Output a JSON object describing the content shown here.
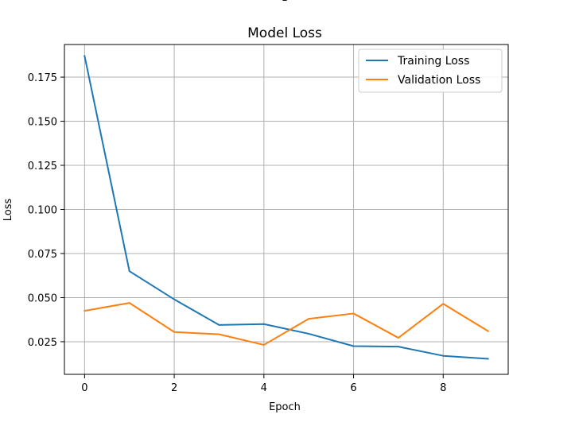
{
  "chart_data": {
    "type": "line",
    "title": "Model Loss",
    "top_cut_text": "–",
    "xlabel": "Epoch",
    "ylabel": "Loss",
    "xlim": [
      -0.45,
      9.45
    ],
    "ylim": [
      0.0065,
      0.1935
    ],
    "x_ticks": [
      0,
      2,
      4,
      6,
      8
    ],
    "y_ticks": [
      0.025,
      0.05,
      0.075,
      0.1,
      0.125,
      0.15,
      0.175
    ],
    "x_tick_labels": [
      "0",
      "2",
      "4",
      "6",
      "8"
    ],
    "y_tick_labels": [
      "0.025",
      "0.050",
      "0.075",
      "0.100",
      "0.125",
      "0.150",
      "0.175"
    ],
    "grid": true,
    "legend_position": "top-right",
    "x": [
      0,
      1,
      2,
      3,
      4,
      5,
      6,
      7,
      8,
      9
    ],
    "series": [
      {
        "name": "Training Loss",
        "color": "#1f77b4",
        "values": [
          0.187,
          0.065,
          0.049,
          0.0345,
          0.035,
          0.0295,
          0.0225,
          0.0222,
          0.017,
          0.0153
        ]
      },
      {
        "name": "Validation Loss",
        "color": "#ff7f0e",
        "values": [
          0.0425,
          0.047,
          0.0305,
          0.0292,
          0.0232,
          0.038,
          0.041,
          0.0272,
          0.0465,
          0.031
        ]
      }
    ]
  }
}
